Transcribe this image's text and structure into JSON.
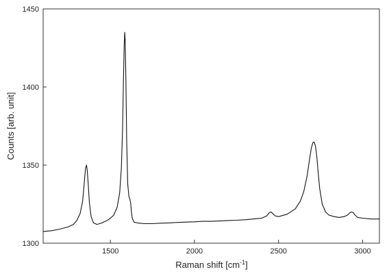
{
  "chart_data": {
    "type": "line",
    "title": "",
    "xlabel": "Raman shift [cm",
    "xlabel_superscript": "-1",
    "xlabel_suffix": "]",
    "ylabel": "Counts [arb. unit]",
    "xlim": [
      1100,
      3100
    ],
    "ylim": [
      1300,
      1450
    ],
    "xticks": [
      1500,
      2000,
      2500,
      3000
    ],
    "yticks": [
      1300,
      1350,
      1400,
      1450
    ],
    "grid": false,
    "legend": "none",
    "line_color": "#111111",
    "series": [
      {
        "x": [
          1100,
          1150,
          1200,
          1250,
          1280,
          1300,
          1320,
          1335,
          1345,
          1352,
          1358,
          1362,
          1368,
          1375,
          1385,
          1400,
          1420,
          1450,
          1480,
          1500,
          1520,
          1540,
          1555,
          1565,
          1572,
          1578,
          1582,
          1585,
          1588,
          1592,
          1597,
          1603,
          1610,
          1616,
          1620,
          1625,
          1630,
          1640,
          1660,
          1700,
          1750,
          1800,
          1850,
          1900,
          1950,
          2000,
          2050,
          2100,
          2150,
          2200,
          2250,
          2300,
          2350,
          2400,
          2430,
          2445,
          2455,
          2465,
          2480,
          2500,
          2550,
          2600,
          2630,
          2650,
          2670,
          2685,
          2695,
          2705,
          2712,
          2720,
          2728,
          2735,
          2745,
          2760,
          2780,
          2800,
          2830,
          2860,
          2890,
          2910,
          2925,
          2935,
          2945,
          2955,
          2970,
          3000,
          3050,
          3100
        ],
        "y": [
          1307.5,
          1308,
          1309,
          1310.5,
          1312,
          1314.5,
          1319,
          1327,
          1339,
          1348,
          1350,
          1347,
          1338,
          1326,
          1317,
          1313,
          1312,
          1313,
          1314.5,
          1316,
          1318,
          1323,
          1332,
          1348,
          1372,
          1405,
          1426,
          1435,
          1430,
          1405,
          1365,
          1338,
          1330,
          1328,
          1326,
          1320,
          1316,
          1313.5,
          1313,
          1312.5,
          1312.5,
          1312.8,
          1313,
          1313.3,
          1313.5,
          1313.7,
          1314,
          1314,
          1314.2,
          1314.5,
          1314.7,
          1315,
          1315.5,
          1316,
          1317.5,
          1319.5,
          1320,
          1319,
          1317.5,
          1317,
          1318.5,
          1322,
          1327,
          1333,
          1343,
          1354,
          1361,
          1364.5,
          1364.8,
          1362,
          1355,
          1346,
          1335,
          1325,
          1320,
          1318,
          1317,
          1316.5,
          1317,
          1318,
          1319.5,
          1320,
          1319.5,
          1318,
          1316.5,
          1316,
          1315.5,
          1315.5
        ]
      }
    ]
  }
}
